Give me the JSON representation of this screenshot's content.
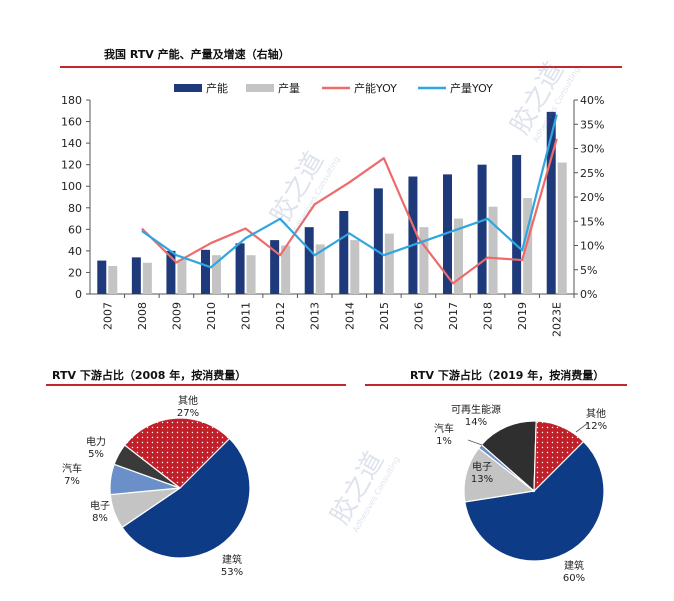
{
  "titles": {
    "top": "我国 RTV 产能、产量及增速（右轴）",
    "left": "RTV 下游占比（2008 年，按消费量）",
    "right": "RTV 下游占比（2019 年，按消费量）"
  },
  "watermark": {
    "text": "胶之道",
    "sub": "Adhesives Consulting"
  },
  "colors": {
    "capacity": "#1f3a7a",
    "output": "#c4c4c4",
    "capacity_yoy": "#ee6b6b",
    "output_yoy": "#2fa6e0",
    "pie_build": "#0d3b86",
    "pie_electronic": "#c4c4c4",
    "pie_auto": "#6a8fc9",
    "pie_power": "#3a3a3a",
    "pie_other": "#c0202a",
    "pie_renew": "#2f2f2f",
    "accent_rule": "#c0282d"
  },
  "chart_data": [
    {
      "type": "bar",
      "categories": [
        "2007",
        "2008",
        "2009",
        "2010",
        "2011",
        "2012",
        "2013",
        "2014",
        "2015",
        "2016",
        "2017",
        "2018",
        "2019",
        "2023E"
      ],
      "ylim": [
        0,
        180
      ],
      "yticks": [
        0,
        20,
        40,
        60,
        80,
        100,
        120,
        140,
        160,
        180
      ],
      "y2lim": [
        0,
        40
      ],
      "y2ticks": [
        "0%",
        "5%",
        "10%",
        "15%",
        "20%",
        "25%",
        "30%",
        "35%",
        "40%"
      ],
      "y2values": [
        0,
        5,
        10,
        15,
        20,
        25,
        30,
        35,
        40
      ],
      "legend": [
        "产能",
        "产量",
        "产能YOY",
        "产量YOY"
      ],
      "series": [
        {
          "name": "产能",
          "kind": "bar",
          "values": [
            31,
            34,
            40,
            41,
            47,
            50,
            62,
            77,
            98,
            109,
            111,
            120,
            129,
            169
          ]
        },
        {
          "name": "产量",
          "kind": "bar",
          "values": [
            26,
            29,
            32,
            36,
            36,
            45,
            46,
            50,
            56,
            62,
            70,
            81,
            89,
            122
          ]
        },
        {
          "name": "产能YOY",
          "kind": "line",
          "values": [
            null,
            13.5,
            6.5,
            10.5,
            13.5,
            8,
            18.5,
            23,
            28,
            11.5,
            2.2,
            7.5,
            7,
            32
          ]
        },
        {
          "name": "产量YOY",
          "kind": "line",
          "values": [
            null,
            13,
            8,
            5.5,
            11.5,
            15.5,
            8,
            12.5,
            8,
            10.5,
            13,
            15.5,
            9,
            37
          ]
        }
      ]
    },
    {
      "type": "pie",
      "labels": [
        "建筑",
        "电子",
        "汽车",
        "电力",
        "其他"
      ],
      "values": [
        53,
        8,
        7,
        5,
        27
      ],
      "label_texts": [
        "53%",
        "8%",
        "7%",
        "5%",
        "27%"
      ]
    },
    {
      "type": "pie",
      "labels": [
        "建筑",
        "电子",
        "汽车",
        "可再生能源",
        "其他"
      ],
      "values": [
        60,
        13,
        1,
        14,
        12
      ],
      "label_texts": [
        "60%",
        "13%",
        "1%",
        "14%",
        "12%"
      ]
    }
  ]
}
